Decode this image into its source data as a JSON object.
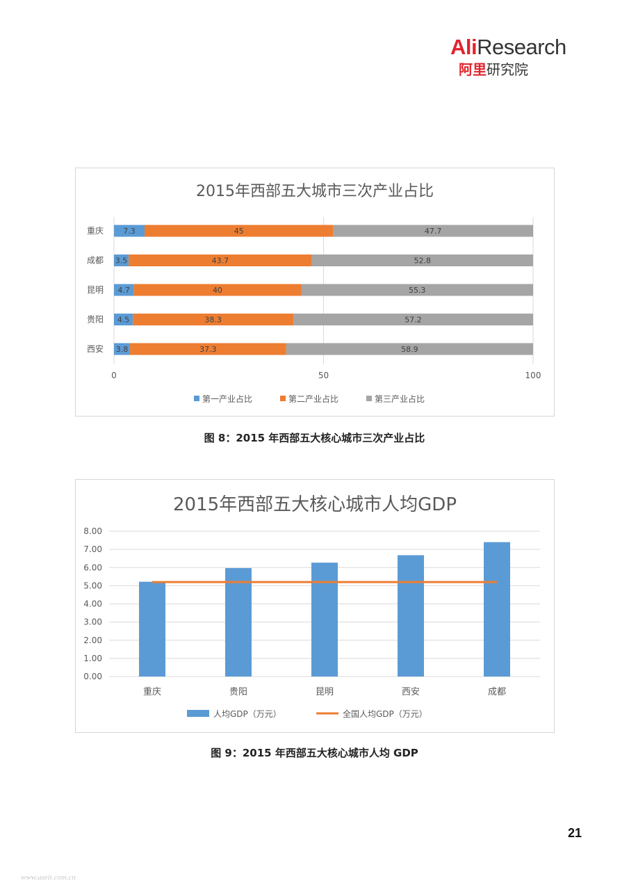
{
  "logo": {
    "brand_en_a": "Ali",
    "brand_en_b": "Research",
    "brand_cn_a": "阿里",
    "brand_cn_b": "研究院"
  },
  "chart1": {
    "title": "2015年西部五大城市三次产业占比",
    "caption": "图 8：2015 年西部五大核心城市三次产业占比",
    "chart_data": {
      "type": "bar",
      "orientation": "horizontal",
      "stacked": true,
      "categories": [
        "重庆",
        "成都",
        "昆明",
        "贵阳",
        "西安"
      ],
      "series": [
        {
          "name": "第一产业占比",
          "color": "#5b9bd5",
          "values": [
            7.3,
            3.5,
            4.7,
            4.5,
            3.8
          ]
        },
        {
          "name": "第二产业占比",
          "color": "#ed7d31",
          "values": [
            45,
            43.7,
            40,
            38.3,
            37.3
          ]
        },
        {
          "name": "第三产业占比",
          "color": "#a5a5a5",
          "values": [
            47.7,
            52.8,
            55.3,
            57.2,
            58.9
          ]
        }
      ],
      "xticks": [
        "0",
        "50",
        "100"
      ],
      "xlim": [
        0,
        100
      ],
      "legend": "bottom"
    }
  },
  "chart2": {
    "title": "2015年西部五大核心城市人均GDP",
    "caption": "图 9：2015 年西部五大核心城市人均 GDP",
    "chart_data": {
      "type": "bar",
      "categories": [
        "重庆",
        "贵阳",
        "昆明",
        "西安",
        "成都"
      ],
      "series": [
        {
          "name": "人均GDP（万元）",
          "kind": "bar",
          "color": "#5b9bd5",
          "values": [
            5.22,
            5.97,
            6.27,
            6.68,
            7.4
          ]
        },
        {
          "name": "全国人均GDP（万元）",
          "kind": "line",
          "color": "#ed7d31",
          "values": [
            5.2,
            5.2,
            5.2,
            5.2,
            5.2
          ]
        }
      ],
      "yticks": [
        "0.00",
        "1.00",
        "2.00",
        "3.00",
        "4.00",
        "5.00",
        "6.00",
        "7.00",
        "8.00"
      ],
      "ylim": [
        0,
        8
      ],
      "grid": true,
      "legend": "bottom"
    }
  },
  "page_number": "21",
  "watermark": "www.useit.com.cn"
}
